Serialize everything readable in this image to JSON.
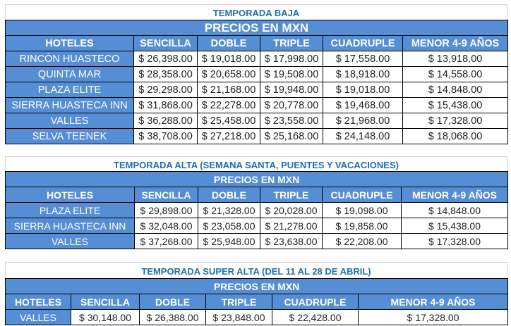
{
  "tables": [
    {
      "title": "TEMPORADA BAJA",
      "subtitle": "PRECIOS EN MXN",
      "headers": [
        "HOTELES",
        "SENCILLA",
        "DOBLE",
        "TRIPLE",
        "CUADRUPLE",
        "MENOR 4-9 AÑOS"
      ],
      "rows": [
        [
          "RINCÓN HUASTECO",
          "$ 26,398.00",
          "$ 19,018.00",
          "$ 17,998.00",
          "$ 17,558.00",
          "$ 13,918.00"
        ],
        [
          "QUINTA MAR",
          "$ 28,358.00",
          "$ 20,658.00",
          "$ 19,508.00",
          "$ 18,918.00",
          "$ 14,558.00"
        ],
        [
          "PLAZA ELITE",
          "$ 29,298.00",
          "$ 21,168.00",
          "$ 19,948.00",
          "$ 19,018.00",
          "$ 14,848.00"
        ],
        [
          "SIERRA HUASTECA INN",
          "$ 31,868.00",
          "$ 22,278.00",
          "$ 20,778.00",
          "$ 19,468.00",
          "$ 15,438.00"
        ],
        [
          "VALLES",
          "$ 36,288.00",
          "$ 25,458.00",
          "$ 23,558.00",
          "$ 21,968.00",
          "$ 17,328.00"
        ],
        [
          "SELVA TEENEK",
          "$ 38,708.00",
          "$ 27,218.00",
          "$ 25,168.00",
          "$ 24,148.00",
          "$ 18,068.00"
        ]
      ]
    },
    {
      "title": "TEMPORADA ALTA (SEMANA SANTA, PUENTES Y VACACIONES)",
      "subtitle": "PRECIOS EN MXN",
      "headers": [
        "HOTELES",
        "SENCILLA",
        "DOBLE",
        "TRIPLE",
        "CUADRUPLE",
        "MENOR 4-9 AÑOS"
      ],
      "rows": [
        [
          "PLAZA ELITE",
          "$ 29,898.00",
          "$ 21,328.00",
          "$ 20,028.00",
          "$ 19,098.00",
          "$ 14,848.00"
        ],
        [
          "SIERRA HUASTECA INN",
          "$ 32,048.00",
          "$ 23,058.00",
          "$ 21,278.00",
          "$ 19,858.00",
          "$ 15,438.00"
        ],
        [
          "VALLES",
          "$ 37,268.00",
          "$ 25,948.00",
          "$ 23,638.00",
          "$ 22,208.00",
          "$ 17,328.00"
        ]
      ]
    },
    {
      "title": "TEMPORADA SUPER ALTA (DEL 11 AL 28 DE ABRIL)",
      "subtitle": "PRECIOS EN MXN",
      "headers": [
        "HOTELES",
        "SENCILLA",
        "DOBLE",
        "TRIPLE",
        "CUADRUPLE",
        "MENOR 4-9 AÑOS"
      ],
      "rows": [
        [
          "VALLES",
          "$ 30,148.00",
          "$ 26,388.00",
          "$ 23,848.00",
          "$ 22,428.00",
          "$ 17,328.00"
        ]
      ]
    }
  ],
  "colors": {
    "header_bg": "#558ed5",
    "title_text": "#1f6fb0"
  }
}
